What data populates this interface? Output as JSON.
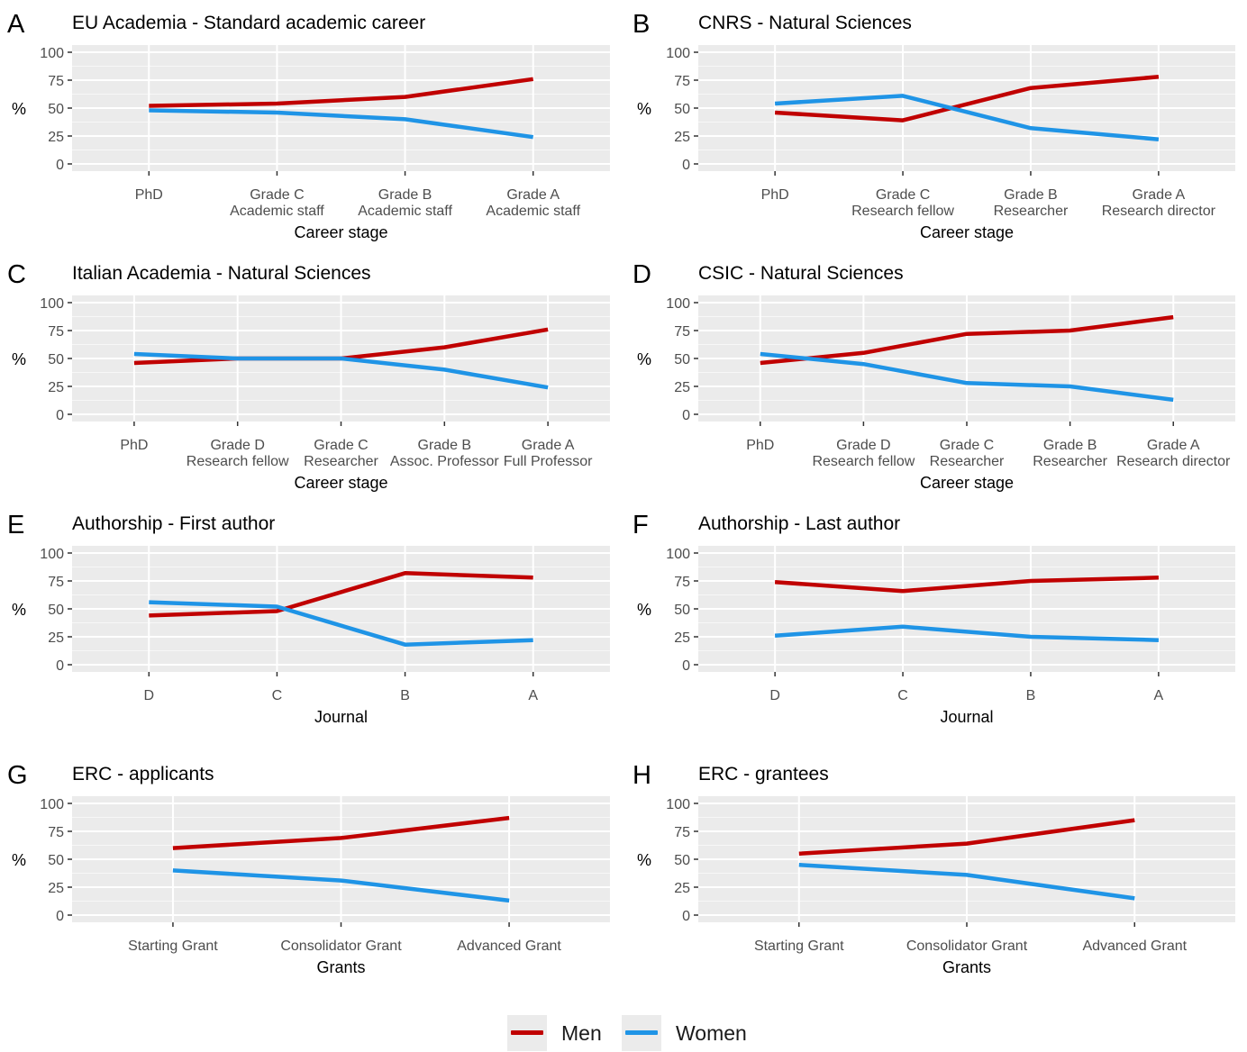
{
  "legend": {
    "men": {
      "label": "Men",
      "color": "#c00000"
    },
    "women": {
      "label": "Women",
      "color": "#1f94e6"
    }
  },
  "chart_data": [
    {
      "panel": "A",
      "type": "line",
      "title": "EU Academia - Standard academic career",
      "xlabel": "Career stage",
      "ylabel": "%",
      "ylim": [
        0,
        100
      ],
      "yticks": [
        0,
        25,
        50,
        75,
        100
      ],
      "categories": [
        "PhD",
        "Grade C\nAcademic staff",
        "Grade B\nAcademic staff",
        "Grade A\nAcademic staff"
      ],
      "series": [
        {
          "name": "Men",
          "values": [
            52,
            54,
            60,
            76
          ]
        },
        {
          "name": "Women",
          "values": [
            48,
            46,
            40,
            24
          ]
        }
      ]
    },
    {
      "panel": "B",
      "type": "line",
      "title": "CNRS - Natural Sciences",
      "xlabel": "Career stage",
      "ylabel": "%",
      "ylim": [
        0,
        100
      ],
      "yticks": [
        0,
        25,
        50,
        75,
        100
      ],
      "categories": [
        "PhD",
        "Grade C\nResearch fellow",
        "Grade B\nResearcher",
        "Grade A\nResearch director"
      ],
      "series": [
        {
          "name": "Men",
          "values": [
            46,
            39,
            68,
            78
          ]
        },
        {
          "name": "Women",
          "values": [
            54,
            61,
            32,
            22
          ]
        }
      ]
    },
    {
      "panel": "C",
      "type": "line",
      "title": "Italian Academia - Natural Sciences",
      "xlabel": "Career stage",
      "ylabel": "%",
      "ylim": [
        0,
        100
      ],
      "yticks": [
        0,
        25,
        50,
        75,
        100
      ],
      "categories": [
        "PhD",
        "Grade D\nResearch fellow",
        "Grade C\nResearcher",
        "Grade B\nAssoc. Professor",
        "Grade A\nFull Professor"
      ],
      "series": [
        {
          "name": "Men",
          "values": [
            46,
            50,
            50,
            60,
            76
          ]
        },
        {
          "name": "Women",
          "values": [
            54,
            50,
            50,
            40,
            24
          ]
        }
      ]
    },
    {
      "panel": "D",
      "type": "line",
      "title": "CSIC - Natural Sciences",
      "xlabel": "Career stage",
      "ylabel": "%",
      "ylim": [
        0,
        100
      ],
      "yticks": [
        0,
        25,
        50,
        75,
        100
      ],
      "categories": [
        "PhD",
        "Grade D\nResearch fellow",
        "Grade C\nResearcher",
        "Grade B\nResearcher",
        "Grade A\nResearch director"
      ],
      "series": [
        {
          "name": "Men",
          "values": [
            46,
            55,
            72,
            75,
            87
          ]
        },
        {
          "name": "Women",
          "values": [
            54,
            45,
            28,
            25,
            13
          ]
        }
      ]
    },
    {
      "panel": "E",
      "type": "line",
      "title": "Authorship - First author",
      "xlabel": "Journal",
      "ylabel": "%",
      "ylim": [
        0,
        100
      ],
      "yticks": [
        0,
        25,
        50,
        75,
        100
      ],
      "categories": [
        "D",
        "C",
        "B",
        "A"
      ],
      "series": [
        {
          "name": "Men",
          "values": [
            44,
            48,
            82,
            78
          ]
        },
        {
          "name": "Women",
          "values": [
            56,
            52,
            18,
            22
          ]
        }
      ]
    },
    {
      "panel": "F",
      "type": "line",
      "title": "Authorship - Last author",
      "xlabel": "Journal",
      "ylabel": "%",
      "ylim": [
        0,
        100
      ],
      "yticks": [
        0,
        25,
        50,
        75,
        100
      ],
      "categories": [
        "D",
        "C",
        "B",
        "A"
      ],
      "series": [
        {
          "name": "Men",
          "values": [
            74,
            66,
            75,
            78
          ]
        },
        {
          "name": "Women",
          "values": [
            26,
            34,
            25,
            22
          ]
        }
      ]
    },
    {
      "panel": "G",
      "type": "line",
      "title": "ERC - applicants",
      "xlabel": "Grants",
      "ylabel": "%",
      "ylim": [
        0,
        100
      ],
      "yticks": [
        0,
        25,
        50,
        75,
        100
      ],
      "categories": [
        "Starting Grant",
        "Consolidator Grant",
        "Advanced Grant"
      ],
      "series": [
        {
          "name": "Men",
          "values": [
            60,
            69,
            87
          ]
        },
        {
          "name": "Women",
          "values": [
            40,
            31,
            13
          ]
        }
      ]
    },
    {
      "panel": "H",
      "type": "line",
      "title": "ERC - grantees",
      "xlabel": "Grants",
      "ylabel": "%",
      "ylim": [
        0,
        100
      ],
      "yticks": [
        0,
        25,
        50,
        75,
        100
      ],
      "categories": [
        "Starting Grant",
        "Consolidator Grant",
        "Advanced Grant"
      ],
      "series": [
        {
          "name": "Men",
          "values": [
            55,
            64,
            85
          ]
        },
        {
          "name": "Women",
          "values": [
            45,
            36,
            15
          ]
        }
      ]
    }
  ]
}
